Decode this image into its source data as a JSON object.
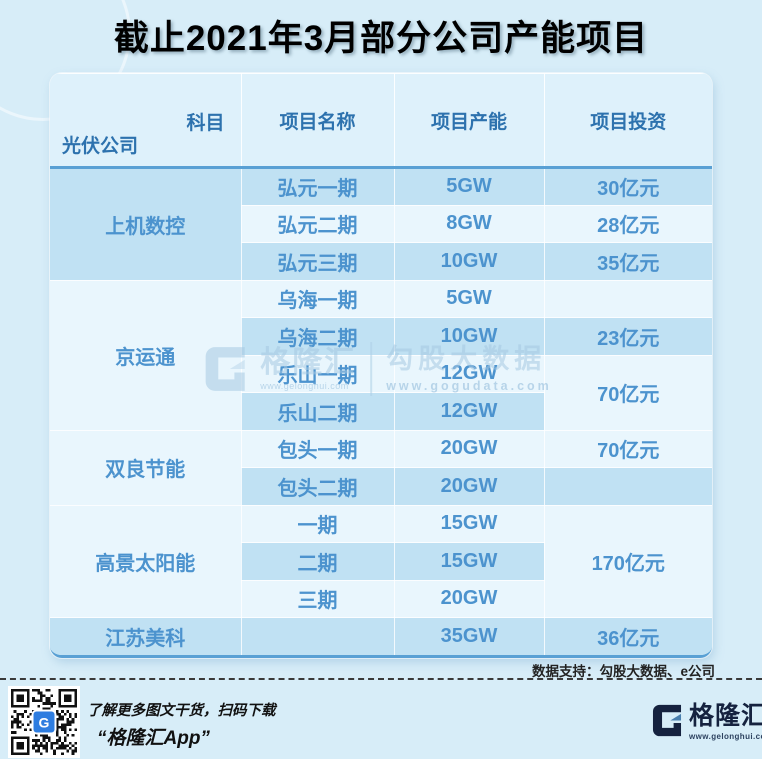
{
  "title": "截止2021年3月部分公司产能项目",
  "table": {
    "corner_top": "科目",
    "corner_bottom": "光伏公司",
    "columns": [
      "项目名称",
      "项目产能",
      "项目投资"
    ],
    "groups": [
      {
        "company": "上机数控",
        "company_shade": "dark",
        "rows": [
          {
            "name": "弘元一期",
            "capacity": "5GW",
            "investment": "30亿元",
            "shade": "dark"
          },
          {
            "name": "弘元二期",
            "capacity": "8GW",
            "investment": "28亿元",
            "shade": "light"
          },
          {
            "name": "弘元三期",
            "capacity": "10GW",
            "investment": "35亿元",
            "shade": "dark"
          }
        ]
      },
      {
        "company": "京运通",
        "company_shade": "light",
        "rows": [
          {
            "name": "乌海一期",
            "capacity": "5GW",
            "investment": "",
            "shade": "light"
          },
          {
            "name": "乌海二期",
            "capacity": "10GW",
            "investment": "23亿元",
            "shade": "dark"
          },
          {
            "name": "乐山一期",
            "capacity": "12GW",
            "investment": "70亿元",
            "investment_rowspan": 2,
            "shade": "light"
          },
          {
            "name": "乐山二期",
            "capacity": "12GW",
            "shade": "dark"
          }
        ]
      },
      {
        "company": "双良节能",
        "company_shade": "light",
        "rows": [
          {
            "name": "包头一期",
            "capacity": "20GW",
            "investment": "70亿元",
            "shade": "light"
          },
          {
            "name": "包头二期",
            "capacity": "20GW",
            "investment": "",
            "shade": "dark"
          }
        ]
      },
      {
        "company": "高景太阳能",
        "company_shade": "light",
        "rows": [
          {
            "name": "一期",
            "capacity": "15GW",
            "investment": "170亿元",
            "investment_rowspan": 3,
            "shade": "light"
          },
          {
            "name": "二期",
            "capacity": "15GW",
            "shade": "dark"
          },
          {
            "name": "三期",
            "capacity": "20GW",
            "shade": "light"
          }
        ]
      },
      {
        "company": "江苏美科",
        "company_shade": "dark",
        "rows": [
          {
            "name": "",
            "capacity": "35GW",
            "investment": "36亿元",
            "shade": "dark"
          }
        ]
      }
    ]
  },
  "chart_data": {
    "type": "table",
    "title": "截止2021年3月部分公司产能项目",
    "columns": [
      "光伏公司",
      "项目名称",
      "项目产能",
      "项目投资"
    ],
    "rows": [
      [
        "上机数控",
        "弘元一期",
        "5GW",
        "30亿元"
      ],
      [
        "上机数控",
        "弘元二期",
        "8GW",
        "28亿元"
      ],
      [
        "上机数控",
        "弘元三期",
        "10GW",
        "35亿元"
      ],
      [
        "京运通",
        "乌海一期",
        "5GW",
        ""
      ],
      [
        "京运通",
        "乌海二期",
        "10GW",
        "23亿元"
      ],
      [
        "京运通",
        "乐山一期",
        "12GW",
        "70亿元"
      ],
      [
        "京运通",
        "乐山二期",
        "12GW",
        "70亿元"
      ],
      [
        "双良节能",
        "包头一期",
        "20GW",
        "70亿元"
      ],
      [
        "双良节能",
        "包头二期",
        "20GW",
        ""
      ],
      [
        "高景太阳能",
        "一期",
        "15GW",
        "170亿元"
      ],
      [
        "高景太阳能",
        "二期",
        "15GW",
        "170亿元"
      ],
      [
        "高景太阳能",
        "三期",
        "20GW",
        "170亿元"
      ],
      [
        "江苏美科",
        "",
        "35GW",
        "36亿元"
      ]
    ]
  },
  "watermark": {
    "brand": "格隆汇",
    "brand_url": "www.gelonghui.com",
    "partner": "勾股大数据",
    "partner_url": "www.gogudata.com"
  },
  "footer": {
    "data_support": "数据支持：勾股大数据、e公司",
    "promo_line1": "了解更多图文干货，扫码下载",
    "promo_line2": "“格隆汇App”",
    "qr_logo_letter": "G",
    "logo_text": "格隆汇",
    "logo_url": "www.gelonghui.com"
  },
  "colors": {
    "page_bg": "#d7edf8",
    "header_bg": "#def1fb",
    "row_dark": "#c0e1f3",
    "row_light": "#e9f6fd",
    "header_text": "#2d72ae",
    "cell_text": "#4c93ce",
    "divider_blue": "#59a0d4",
    "logo_navy": "#15223f",
    "logo_steel": "#4a7fae",
    "qr_logo_blue": "#2e7de0"
  }
}
